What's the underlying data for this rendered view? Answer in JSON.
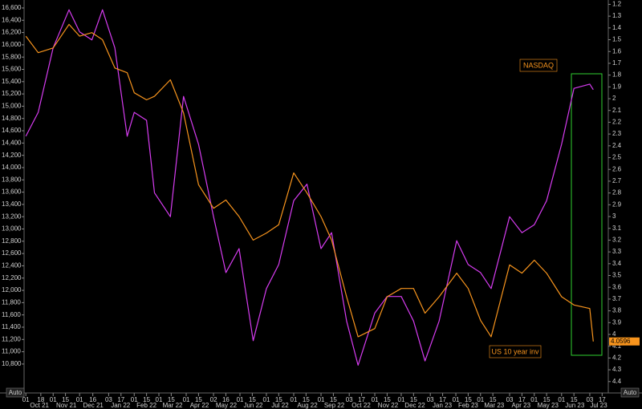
{
  "chart_data": {
    "type": "line",
    "x": [
      "2021-10-01",
      "2021-10-15",
      "2021-11-01",
      "2021-11-19",
      "2021-12-01",
      "2021-12-15",
      "2021-12-27",
      "2022-01-10",
      "2022-01-24",
      "2022-02-01",
      "2022-02-15",
      "2022-02-24",
      "2022-03-14",
      "2022-03-29",
      "2022-04-15",
      "2022-05-02",
      "2022-05-16",
      "2022-05-31",
      "2022-06-16",
      "2022-07-01",
      "2022-07-15",
      "2022-08-01",
      "2022-08-16",
      "2022-09-01",
      "2022-09-13",
      "2022-09-30",
      "2022-10-13",
      "2022-11-01",
      "2022-11-15",
      "2022-12-01",
      "2022-12-15",
      "2022-12-28",
      "2023-01-13",
      "2023-02-02",
      "2023-02-15",
      "2023-03-01",
      "2023-03-13",
      "2023-04-03",
      "2023-04-17",
      "2023-05-01",
      "2023-05-15",
      "2023-06-01",
      "2023-06-15",
      "2023-07-03",
      "2023-07-07"
    ],
    "series": [
      {
        "name": "NASDAQ",
        "color": "#d63cf0",
        "axis": "y",
        "values": [
          14510,
          14900,
          15950,
          16570,
          16210,
          16080,
          16570,
          15950,
          14510,
          14900,
          14770,
          13590,
          13200,
          15160,
          14380,
          13200,
          12290,
          12680,
          11180,
          12030,
          12420,
          13460,
          13730,
          12680,
          12940,
          11500,
          10780,
          11630,
          11900,
          11900,
          11500,
          10850,
          11500,
          12810,
          12420,
          12290,
          12030,
          13200,
          12940,
          13070,
          13460,
          14380,
          15290,
          15360,
          15270
        ]
      },
      {
        "name": "US 10 year inv",
        "color": "#f7941d",
        "axis": "y2",
        "values": [
          1.47,
          1.61,
          1.57,
          1.37,
          1.47,
          1.44,
          1.5,
          1.74,
          1.78,
          1.95,
          2.01,
          1.98,
          1.84,
          2.12,
          2.73,
          2.93,
          2.86,
          3.0,
          3.2,
          3.14,
          3.07,
          2.63,
          2.8,
          3.0,
          3.2,
          3.68,
          4.02,
          3.95,
          3.68,
          3.61,
          3.61,
          3.82,
          3.68,
          3.48,
          3.61,
          3.88,
          4.02,
          3.41,
          3.48,
          3.37,
          3.48,
          3.68,
          3.75,
          3.78,
          4.0596
        ]
      }
    ],
    "xlim": [
      "2021-09-29",
      "2023-07-24"
    ],
    "ylim": [
      10420,
      16730
    ],
    "yticks": [
      {
        "value": 10800,
        "label": "10,800"
      },
      {
        "value": 11000,
        "label": "11,000"
      },
      {
        "value": 11200,
        "label": "11,200"
      },
      {
        "value": 11400,
        "label": "11,400"
      },
      {
        "value": 11600,
        "label": "11,600"
      },
      {
        "value": 11800,
        "label": "11,800"
      },
      {
        "value": 12000,
        "label": "12,000"
      },
      {
        "value": 12200,
        "label": "12,200"
      },
      {
        "value": 12400,
        "label": "12,400"
      },
      {
        "value": 12600,
        "label": "12,600"
      },
      {
        "value": 12800,
        "label": "12,800"
      },
      {
        "value": 13000,
        "label": "13,000"
      },
      {
        "value": 13200,
        "label": "13,200"
      },
      {
        "value": 13400,
        "label": "13,400"
      },
      {
        "value": 13600,
        "label": "13,600"
      },
      {
        "value": 13800,
        "label": "13,800"
      },
      {
        "value": 14000,
        "label": "14,000"
      },
      {
        "value": 14200,
        "label": "14,200"
      },
      {
        "value": 14400,
        "label": "14,400"
      },
      {
        "value": 14600,
        "label": "14,600"
      },
      {
        "value": 14800,
        "label": "14,800"
      },
      {
        "value": 15000,
        "label": "15,000"
      },
      {
        "value": 15200,
        "label": "15,200"
      },
      {
        "value": 15400,
        "label": "15,400"
      },
      {
        "value": 15600,
        "label": "15,600"
      },
      {
        "value": 15800,
        "label": "15,800"
      },
      {
        "value": 16000,
        "label": "16,000"
      },
      {
        "value": 16200,
        "label": "16,200"
      },
      {
        "value": 16400,
        "label": "16,400"
      },
      {
        "value": 16600,
        "label": "16,600"
      }
    ],
    "y2lim": [
      1.163,
      4.449
    ],
    "y2_inverted": true,
    "y2ticks": [
      1.2,
      1.3,
      1.4,
      1.5,
      1.6,
      1.7,
      1.8,
      1.9,
      2,
      2.1,
      2.2,
      2.3,
      2.4,
      2.5,
      2.6,
      2.7,
      2.8,
      2.9,
      3,
      3.1,
      3.2,
      3.3,
      3.4,
      3.5,
      3.6,
      3.7,
      3.8,
      3.9,
      4,
      4.1,
      4.2,
      4.3,
      4.4
    ],
    "xticks": [
      {
        "value": "2021-10-01",
        "label": "01"
      },
      {
        "value": "2021-10-18",
        "label": "18"
      },
      {
        "value": "2021-11-01",
        "label": "01"
      },
      {
        "value": "2021-11-15",
        "label": "15"
      },
      {
        "value": "2021-12-01",
        "label": "01"
      },
      {
        "value": "2021-12-16",
        "label": "16"
      },
      {
        "value": "2022-01-03",
        "label": "03"
      },
      {
        "value": "2022-01-17",
        "label": "17"
      },
      {
        "value": "2022-02-01",
        "label": "01"
      },
      {
        "value": "2022-02-15",
        "label": "15"
      },
      {
        "value": "2022-03-01",
        "label": "01"
      },
      {
        "value": "2022-03-15",
        "label": "15"
      },
      {
        "value": "2022-04-01",
        "label": "01"
      },
      {
        "value": "2022-04-15",
        "label": "15"
      },
      {
        "value": "2022-05-02",
        "label": "02"
      },
      {
        "value": "2022-05-16",
        "label": "16"
      },
      {
        "value": "2022-06-01",
        "label": "01"
      },
      {
        "value": "2022-06-15",
        "label": "15"
      },
      {
        "value": "2022-07-01",
        "label": "01"
      },
      {
        "value": "2022-07-15",
        "label": "15"
      },
      {
        "value": "2022-08-01",
        "label": "01"
      },
      {
        "value": "2022-08-15",
        "label": "15"
      },
      {
        "value": "2022-09-01",
        "label": "01"
      },
      {
        "value": "2022-09-15",
        "label": "15"
      },
      {
        "value": "2022-10-03",
        "label": "03"
      },
      {
        "value": "2022-10-17",
        "label": "17"
      },
      {
        "value": "2022-11-01",
        "label": "01"
      },
      {
        "value": "2022-11-15",
        "label": "15"
      },
      {
        "value": "2022-12-01",
        "label": "01"
      },
      {
        "value": "2022-12-15",
        "label": "15"
      },
      {
        "value": "2023-01-03",
        "label": "03"
      },
      {
        "value": "2023-01-17",
        "label": "17"
      },
      {
        "value": "2023-02-01",
        "label": "01"
      },
      {
        "value": "2023-02-15",
        "label": "15"
      },
      {
        "value": "2023-03-01",
        "label": "01"
      },
      {
        "value": "2023-03-15",
        "label": "15"
      },
      {
        "value": "2023-04-03",
        "label": "03"
      },
      {
        "value": "2023-04-17",
        "label": "17"
      },
      {
        "value": "2023-05-01",
        "label": "01"
      },
      {
        "value": "2023-05-15",
        "label": "15"
      },
      {
        "value": "2023-06-01",
        "label": "01"
      },
      {
        "value": "2023-06-15",
        "label": "15"
      },
      {
        "value": "2023-07-03",
        "label": "03"
      },
      {
        "value": "2023-07-17",
        "label": "17"
      }
    ],
    "months": [
      {
        "value": "2021-10",
        "label": "Oct 21"
      },
      {
        "value": "2021-11",
        "label": "Nov 21"
      },
      {
        "value": "2021-12",
        "label": "Dec 21"
      },
      {
        "value": "2022-01",
        "label": "Jan 22"
      },
      {
        "value": "2022-02",
        "label": "Feb 22"
      },
      {
        "value": "2022-03",
        "label": "Mar 22"
      },
      {
        "value": "2022-04",
        "label": "Apr 22"
      },
      {
        "value": "2022-05",
        "label": "May 22"
      },
      {
        "value": "2022-06",
        "label": "Jun 22"
      },
      {
        "value": "2022-07",
        "label": "Jul 22"
      },
      {
        "value": "2022-08",
        "label": "Aug 22"
      },
      {
        "value": "2022-09",
        "label": "Sep 22"
      },
      {
        "value": "2022-10",
        "label": "Oct 22"
      },
      {
        "value": "2022-11",
        "label": "Nov 22"
      },
      {
        "value": "2022-12",
        "label": "Dec 22"
      },
      {
        "value": "2023-01",
        "label": "Jan 23"
      },
      {
        "value": "2023-02",
        "label": "Feb 23"
      },
      {
        "value": "2023-03",
        "label": "Mar 23"
      },
      {
        "value": "2023-04",
        "label": "Apr 23"
      },
      {
        "value": "2023-05",
        "label": "May 23"
      },
      {
        "value": "2023-06",
        "label": "Jun 23"
      },
      {
        "value": "2023-07",
        "label": "Jul 23"
      }
    ],
    "axis_mode": "Auto",
    "grid": false
  }
}
